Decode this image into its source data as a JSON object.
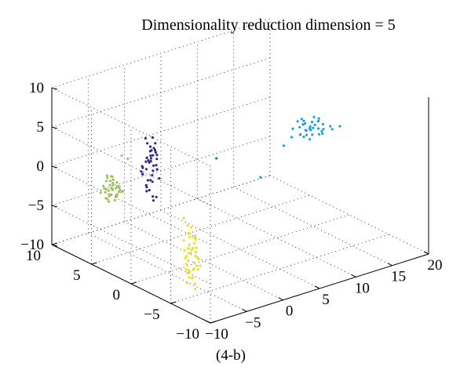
{
  "chart_data": {
    "type": "scatter",
    "title": "Dimensionality reduction dimension = 5",
    "caption": "(4-b)",
    "grid": true,
    "xlabel": "",
    "ylabel": "",
    "zlabel": "",
    "xlim": [
      -10,
      20
    ],
    "ylim": [
      -10,
      10
    ],
    "zlim": [
      -10,
      10
    ],
    "x_ticks": [
      "−10",
      "−5",
      "0",
      "5",
      "10",
      "15",
      "20"
    ],
    "y_ticks": [
      "−10",
      "−5",
      "0",
      "5",
      "10"
    ],
    "z_ticks": [
      "−10",
      "−5",
      "0",
      "5",
      "10"
    ],
    "series": [
      {
        "color": "#1aa0dc",
        "points": [
          [
            15.2,
            0.6,
            2.1
          ],
          [
            15.6,
            0.3,
            2.6
          ],
          [
            16.0,
            0.9,
            1.8
          ],
          [
            14.8,
            0.1,
            2.3
          ],
          [
            15.4,
            1.2,
            1.5
          ],
          [
            16.3,
            0.5,
            2.8
          ],
          [
            14.5,
            0.7,
            1.2
          ],
          [
            15.9,
            -0.3,
            2.0
          ],
          [
            15.1,
            1.5,
            2.9
          ],
          [
            16.6,
            0.8,
            1.6
          ],
          [
            14.2,
            0.2,
            2.4
          ],
          [
            15.7,
            0.0,
            3.2
          ],
          [
            16.1,
            1.1,
            0.8
          ],
          [
            14.9,
            0.9,
            2.7
          ],
          [
            15.3,
            -0.5,
            1.9
          ],
          [
            16.8,
            0.4,
            2.3
          ],
          [
            13.9,
            0.6,
            1.7
          ],
          [
            15.5,
            1.6,
            2.5
          ],
          [
            17.2,
            0.7,
            1.4
          ],
          [
            14.4,
            -0.2,
            3.0
          ],
          [
            15.0,
            0.4,
            0.9
          ],
          [
            16.4,
            1.4,
            2.2
          ],
          [
            15.8,
            0.6,
            3.4
          ],
          [
            13.6,
            0.3,
            2.0
          ],
          [
            17.6,
            0.2,
            1.9
          ],
          [
            15.2,
            1.0,
            1.1
          ],
          [
            16.9,
            1.0,
            2.7
          ],
          [
            14.6,
            1.3,
            2.1
          ],
          [
            18.2,
            0.5,
            1.2
          ],
          [
            13.1,
            0.8,
            2.6
          ],
          [
            16.2,
            -0.1,
            1.5
          ],
          [
            15.6,
            1.8,
            1.9
          ],
          [
            12.5,
            0.4,
            1.9
          ],
          [
            11.2,
            0.2,
            1.3
          ],
          [
            18.8,
            0.1,
            1.6
          ],
          [
            14.1,
            1.1,
            3.1
          ],
          [
            4.3,
            -3.2,
            1.0
          ]
        ]
      },
      {
        "color": "#2e2a8c",
        "points": [
          [
            -3.0,
            3.9,
            2.0
          ],
          [
            -2.7,
            4.2,
            1.4
          ],
          [
            -3.4,
            3.6,
            2.6
          ],
          [
            -2.4,
            3.8,
            1.0
          ],
          [
            -3.1,
            4.4,
            0.4
          ],
          [
            -2.8,
            3.5,
            2.9
          ],
          [
            -3.6,
            4.0,
            1.7
          ],
          [
            -2.3,
            4.3,
            0.0
          ],
          [
            -3.3,
            3.7,
            -0.6
          ],
          [
            -2.6,
            4.1,
            -1.2
          ],
          [
            -3.0,
            3.4,
            3.3
          ],
          [
            -2.2,
            3.9,
            2.2
          ],
          [
            -3.7,
            4.3,
            0.8
          ],
          [
            -2.9,
            4.6,
            -1.8
          ],
          [
            -3.2,
            3.8,
            3.6
          ],
          [
            -2.5,
            3.6,
            0.6
          ],
          [
            -3.5,
            4.5,
            -0.2
          ],
          [
            -2.1,
            4.0,
            1.6
          ],
          [
            -3.8,
            3.7,
            2.4
          ],
          [
            -2.7,
            4.4,
            -2.4
          ],
          [
            -3.1,
            3.5,
            1.3
          ],
          [
            -2.4,
            4.7,
            0.9
          ],
          [
            -3.3,
            4.1,
            3.9
          ],
          [
            -2.0,
            3.8,
            -0.8
          ],
          [
            -3.6,
            3.9,
            -1.5
          ],
          [
            -2.8,
            4.2,
            2.7
          ],
          [
            -3.0,
            4.6,
            4.2
          ],
          [
            -2.6,
            3.6,
            -2.9
          ],
          [
            -3.9,
            4.2,
            1.1
          ],
          [
            -2.2,
            4.4,
            1.9
          ],
          [
            -3.4,
            3.4,
            0.2
          ],
          [
            -2.5,
            4.0,
            3.1
          ],
          [
            -3.2,
            4.8,
            -0.4
          ],
          [
            -2.9,
            3.7,
            -3.3
          ],
          [
            -3.7,
            3.6,
            2.1
          ],
          [
            -2.3,
            4.5,
            2.5
          ],
          [
            -3.5,
            4.0,
            -2.1
          ],
          [
            -2.8,
            3.9,
            4.6
          ],
          [
            -3.0,
            4.3,
            -1.0
          ],
          [
            -2.4,
            3.7,
            0.5
          ],
          [
            -3.8,
            4.4,
            0.3
          ],
          [
            -2.6,
            4.8,
            1.5
          ],
          [
            -3.2,
            3.5,
            -2.6
          ],
          [
            -2.1,
            4.2,
            3.5
          ]
        ]
      },
      {
        "color": "#9fbf5a",
        "points": [
          [
            -6.0,
            6.0,
            -2.2
          ],
          [
            -5.6,
            6.3,
            -1.8
          ],
          [
            -6.4,
            5.8,
            -2.6
          ],
          [
            -5.3,
            6.1,
            -1.5
          ],
          [
            -6.7,
            6.4,
            -2.0
          ],
          [
            -5.9,
            5.6,
            -2.9
          ],
          [
            -6.2,
            6.6,
            -1.3
          ],
          [
            -5.1,
            5.9,
            -2.4
          ],
          [
            -6.8,
            5.9,
            -3.1
          ],
          [
            -5.5,
            6.5,
            -0.9
          ],
          [
            -6.1,
            5.5,
            -1.7
          ],
          [
            -5.8,
            6.7,
            -2.7
          ],
          [
            -6.5,
            6.2,
            -0.6
          ],
          [
            -5.2,
            6.3,
            -3.3
          ],
          [
            -6.3,
            5.7,
            -1.1
          ],
          [
            -5.7,
            6.0,
            -3.6
          ],
          [
            -6.9,
            6.1,
            -2.3
          ],
          [
            -5.4,
            5.7,
            -1.9
          ],
          [
            -6.0,
            6.8,
            -2.5
          ],
          [
            -5.0,
            6.2,
            -2.1
          ],
          [
            -6.6,
            5.6,
            -1.6
          ],
          [
            -5.9,
            6.4,
            -3.0
          ],
          [
            -6.2,
            6.0,
            -0.4
          ],
          [
            -5.6,
            5.8,
            -2.8
          ],
          [
            -6.4,
            6.5,
            -3.4
          ],
          [
            -5.3,
            6.6,
            -1.4
          ],
          [
            -6.1,
            5.9,
            -2.0
          ],
          [
            -5.8,
            6.1,
            -1.0
          ],
          [
            -6.7,
            5.8,
            -2.7
          ],
          [
            -5.5,
            6.0,
            -3.2
          ],
          [
            -6.0,
            6.3,
            -1.2
          ],
          [
            -5.2,
            5.6,
            -2.5
          ],
          [
            -6.5,
            6.7,
            -1.9
          ],
          [
            -5.7,
            5.5,
            -2.3
          ],
          [
            -6.3,
            6.2,
            -3.7
          ],
          [
            -5.9,
            6.8,
            -0.8
          ],
          [
            -7.2,
            6.4,
            -2.4
          ],
          [
            -4.8,
            5.8,
            -2.6
          ],
          [
            -6.0,
            5.4,
            -1.5
          ],
          [
            -5.4,
            6.9,
            -2.2
          ],
          [
            -4.2,
            6.5,
            1.4
          ],
          [
            -3.7,
            6.2,
            1.0
          ]
        ]
      },
      {
        "color": "#e8e024",
        "points": [
          [
            -5.4,
            -3.0,
            -3.4
          ],
          [
            -5.0,
            -3.3,
            -3.9
          ],
          [
            -5.8,
            -2.8,
            -4.3
          ],
          [
            -4.7,
            -3.1,
            -4.8
          ],
          [
            -5.5,
            -3.5,
            -5.2
          ],
          [
            -5.1,
            -2.7,
            -5.6
          ],
          [
            -5.9,
            -3.2,
            -6.1
          ],
          [
            -4.6,
            -3.4,
            -6.5
          ],
          [
            -5.3,
            -2.9,
            -7.0
          ],
          [
            -4.9,
            -3.6,
            -7.4
          ],
          [
            -5.7,
            -3.0,
            -7.9
          ],
          [
            -4.4,
            -2.8,
            -8.3
          ],
          [
            -5.6,
            -3.3,
            -8.8
          ],
          [
            -5.0,
            -3.1,
            -9.2
          ],
          [
            -4.8,
            -2.6,
            -3.8
          ],
          [
            -5.9,
            -3.5,
            -4.9
          ],
          [
            -4.5,
            -3.2,
            -5.4
          ],
          [
            -5.2,
            -3.7,
            -6.0
          ],
          [
            -5.5,
            -2.7,
            -6.7
          ],
          [
            -4.7,
            -3.0,
            -7.3
          ],
          [
            -5.8,
            -3.4,
            -7.8
          ],
          [
            -5.1,
            -2.9,
            -8.5
          ],
          [
            -4.3,
            -3.3,
            -6.9
          ],
          [
            -5.4,
            -3.6,
            -5.0
          ],
          [
            -5.0,
            -2.8,
            -4.1
          ],
          [
            -5.7,
            -3.1,
            -9.6
          ],
          [
            -4.6,
            -3.5,
            -8.0
          ],
          [
            -5.3,
            -3.2,
            -5.8
          ],
          [
            -4.9,
            -2.6,
            -6.3
          ],
          [
            -5.6,
            -3.8,
            -7.6
          ],
          [
            -4.4,
            -3.0,
            -4.5
          ],
          [
            -5.2,
            -3.4,
            -8.9
          ],
          [
            -5.8,
            -2.9,
            -5.5
          ],
          [
            -4.8,
            -3.3,
            -9.9
          ],
          [
            -5.1,
            -3.6,
            -3.5
          ],
          [
            -5.5,
            -3.0,
            -2.4
          ],
          [
            -4.7,
            -2.7,
            -3.0
          ],
          [
            -5.9,
            -3.2,
            -7.1
          ],
          [
            -5.0,
            -3.5,
            -10.4
          ],
          [
            -4.5,
            -3.1,
            -6.0
          ],
          [
            -5.3,
            -2.8,
            -8.6
          ],
          [
            -5.7,
            -3.4,
            -4.6
          ],
          [
            -5.6,
            -2.6,
            -1.6
          ],
          [
            -4.2,
            -3.4,
            -7.7
          ]
        ]
      },
      {
        "color": "#1a6fd0",
        "points": [
          [
            5.0,
            3.0,
            0.1
          ]
        ]
      }
    ]
  }
}
